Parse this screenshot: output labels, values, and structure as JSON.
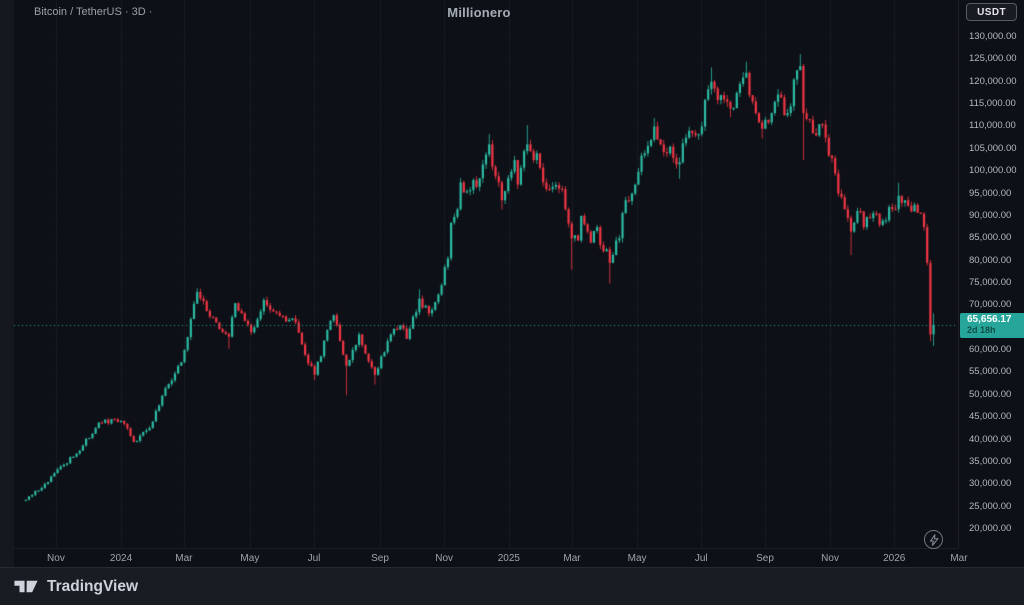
{
  "header": {
    "symbol_title": "Bitcoin / TetherUS · 3D ·",
    "watermark": "Millionero",
    "currency_button": "USDT"
  },
  "footer": {
    "brand": "TradingView"
  },
  "last_price": {
    "value": "65,656.17",
    "numeric": 65656.17,
    "countdown": "2d 18h",
    "color": "#26a69a"
  },
  "chart_data": {
    "type": "candlestick",
    "title": "Bitcoin / TetherUS",
    "interval": "3D",
    "ylim": [
      20000,
      130000
    ],
    "y_step": 5000,
    "grid": true,
    "candle_count": 287,
    "colors": {
      "up": "#2cbca4",
      "down": "#f23645"
    },
    "y_tick_labels": [
      "130,000.00",
      "125,000.00",
      "120,000.00",
      "115,000.00",
      "110,000.00",
      "105,000.00",
      "100,000.00",
      "95,000.00",
      "90,000.00",
      "85,000.00",
      "80,000.00",
      "75,000.00",
      "70,000.00",
      "65,000.00",
      "60,000.00",
      "55,000.00",
      "50,000.00",
      "45,000.00",
      "40,000.00",
      "35,000.00",
      "30,000.00",
      "25,000.00",
      "20,000.00"
    ],
    "x_ticks": [
      {
        "label": "Nov",
        "i": 9.5
      },
      {
        "label": "2024",
        "i": 30
      },
      {
        "label": "Mar",
        "i": 49.8
      },
      {
        "label": "May",
        "i": 70.6
      },
      {
        "label": "Jul",
        "i": 90.8
      },
      {
        "label": "Sep",
        "i": 111.6
      },
      {
        "label": "Nov",
        "i": 131.8
      },
      {
        "label": "2025",
        "i": 152.2
      },
      {
        "label": "Mar",
        "i": 172.1
      },
      {
        "label": "May",
        "i": 192.6
      },
      {
        "label": "Jul",
        "i": 212.8
      },
      {
        "label": "Sep",
        "i": 232.9
      },
      {
        "label": "Nov",
        "i": 253.4
      },
      {
        "label": "2026",
        "i": 273.6
      },
      {
        "label": "Mar",
        "i": 294
      }
    ],
    "anchors": [
      [
        0,
        26500
      ],
      [
        7,
        30500
      ],
      [
        11,
        34000
      ],
      [
        17,
        37500
      ],
      [
        23,
        43800
      ],
      [
        30,
        44200
      ],
      [
        34,
        39500
      ],
      [
        39,
        42600
      ],
      [
        44,
        51500
      ],
      [
        49,
        57300
      ],
      [
        54,
        73000
      ],
      [
        58,
        67500
      ],
      [
        64,
        63000
      ],
      [
        66,
        70500
      ],
      [
        71,
        64000
      ],
      [
        75,
        71200
      ],
      [
        81,
        67500
      ],
      [
        85,
        66200
      ],
      [
        89,
        57000
      ],
      [
        91,
        54500
      ],
      [
        95,
        64500
      ],
      [
        97,
        67800
      ],
      [
        101,
        56500
      ],
      [
        105,
        63500
      ],
      [
        108,
        57500
      ],
      [
        110,
        54500
      ],
      [
        114,
        62000
      ],
      [
        118,
        65500
      ],
      [
        120,
        62500
      ],
      [
        122,
        67500
      ],
      [
        124,
        71500
      ],
      [
        125,
        69500
      ],
      [
        127,
        68200
      ],
      [
        131,
        74500
      ],
      [
        133,
        80500
      ],
      [
        134,
        88500
      ],
      [
        136,
        91500
      ],
      [
        137,
        97500
      ],
      [
        139,
        95500
      ],
      [
        141,
        98000
      ],
      [
        142,
        96500
      ],
      [
        144,
        101500
      ],
      [
        146,
        106000
      ],
      [
        147,
        101000
      ],
      [
        149,
        97500
      ],
      [
        150,
        93500
      ],
      [
        152,
        98500
      ],
      [
        154,
        102500
      ],
      [
        155,
        97000
      ],
      [
        157,
        104500
      ],
      [
        158,
        106000
      ],
      [
        160,
        102500
      ],
      [
        161,
        104000
      ],
      [
        163,
        97500
      ],
      [
        166,
        96500
      ],
      [
        169,
        96000
      ],
      [
        170,
        91500
      ],
      [
        172,
        85000
      ],
      [
        174,
        84500
      ],
      [
        175,
        90000
      ],
      [
        177,
        86500
      ],
      [
        178,
        84000
      ],
      [
        180,
        87500
      ],
      [
        181,
        83500
      ],
      [
        183,
        82500
      ],
      [
        184,
        79500
      ],
      [
        186,
        84500
      ],
      [
        187,
        85000
      ],
      [
        189,
        93500
      ],
      [
        191,
        95000
      ],
      [
        192,
        97000
      ],
      [
        194,
        103500
      ],
      [
        195,
        104000
      ],
      [
        197,
        107000
      ],
      [
        198,
        110000
      ],
      [
        200,
        106000
      ],
      [
        202,
        104000
      ],
      [
        203,
        105500
      ],
      [
        205,
        101500
      ],
      [
        206,
        102000
      ],
      [
        208,
        107500
      ],
      [
        210,
        108500
      ],
      [
        211,
        108000
      ],
      [
        213,
        110000
      ],
      [
        214,
        116000
      ],
      [
        216,
        120000
      ],
      [
        217,
        118500
      ],
      [
        219,
        117000
      ],
      [
        221,
        115500
      ],
      [
        222,
        114000
      ],
      [
        224,
        117500
      ],
      [
        225,
        119500
      ],
      [
        227,
        122000
      ],
      [
        228,
        117000
      ],
      [
        230,
        113000
      ],
      [
        232,
        109500
      ],
      [
        233,
        111500
      ],
      [
        235,
        113000
      ],
      [
        236,
        115500
      ],
      [
        238,
        116500
      ],
      [
        239,
        112500
      ],
      [
        241,
        114500
      ],
      [
        242,
        120500
      ],
      [
        244,
        123500
      ],
      [
        245,
        113000
      ],
      [
        247,
        111500
      ],
      [
        249,
        108000
      ],
      [
        250,
        110500
      ],
      [
        252,
        107500
      ],
      [
        253,
        103500
      ],
      [
        255,
        99500
      ],
      [
        256,
        95000
      ],
      [
        258,
        91500
      ],
      [
        260,
        86500
      ],
      [
        261,
        88500
      ],
      [
        263,
        91000
      ],
      [
        264,
        87500
      ],
      [
        266,
        89500
      ],
      [
        268,
        90500
      ],
      [
        269,
        88000
      ],
      [
        271,
        89000
      ],
      [
        272,
        92000
      ],
      [
        274,
        91500
      ],
      [
        275,
        94500
      ],
      [
        277,
        93500
      ],
      [
        279,
        91000
      ],
      [
        280,
        92500
      ],
      [
        282,
        90500
      ],
      [
        283,
        87500
      ],
      [
        284,
        79500
      ],
      [
        285,
        63500
      ],
      [
        286,
        65656.17
      ]
    ],
    "spike_highs": [
      [
        54,
        73800
      ],
      [
        124,
        73600
      ],
      [
        146,
        108300
      ],
      [
        158,
        110300
      ],
      [
        198,
        111900
      ],
      [
        216,
        123200
      ],
      [
        227,
        124500
      ],
      [
        244,
        126200
      ],
      [
        275,
        97400
      ],
      [
        286,
        68200
      ]
    ],
    "spike_lows": [
      [
        64,
        60300
      ],
      [
        91,
        53300
      ],
      [
        101,
        49900
      ],
      [
        110,
        52300
      ],
      [
        150,
        91400
      ],
      [
        172,
        78000
      ],
      [
        184,
        74900
      ],
      [
        206,
        98300
      ],
      [
        222,
        112100
      ],
      [
        232,
        107300
      ],
      [
        245,
        102500
      ],
      [
        260,
        81200
      ],
      [
        285,
        62000
      ],
      [
        286,
        60900
      ]
    ]
  }
}
